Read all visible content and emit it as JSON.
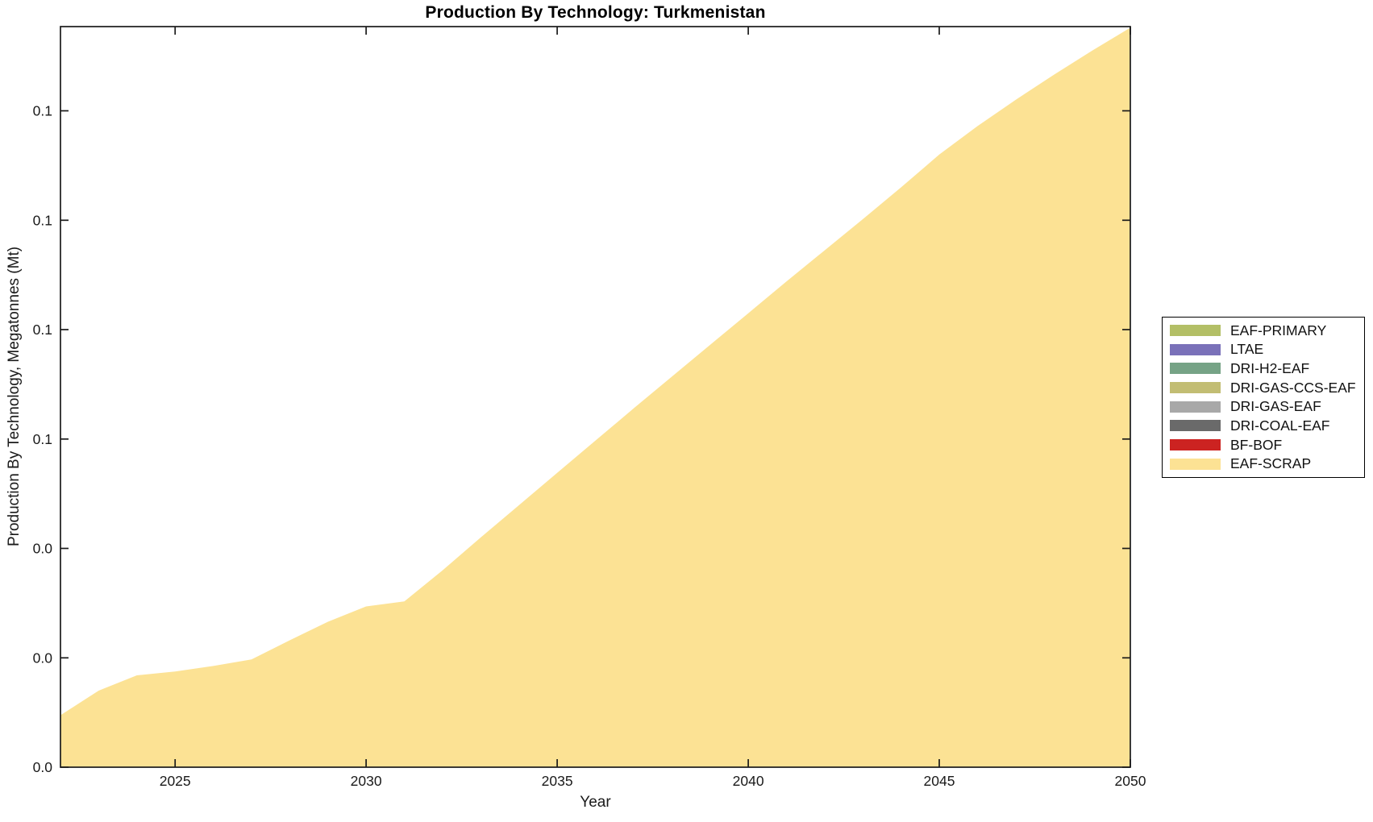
{
  "title": "Production By Technology: Turkmenistan",
  "axes": {
    "xlabel": "Year",
    "ylabel": "Production By Technology, Megatonnes (Mt)",
    "x_range": [
      2022,
      2050
    ],
    "y_range": [
      0,
      0.1354
    ],
    "x_ticks": [
      2025,
      2030,
      2035,
      2040,
      2045,
      2050
    ],
    "x_tick_labels": [
      "2025",
      "2030",
      "2035",
      "2040",
      "2045",
      "2050"
    ],
    "y_ticks": [
      0,
      0.02,
      0.04,
      0.06,
      0.08,
      0.1,
      0.12
    ],
    "y_tick_labels": [
      "0.0",
      "0.0",
      "0.0",
      "0.1",
      "0.1",
      "0.1",
      "0.1"
    ],
    "axis_color": "#1a1a1a",
    "grid": false
  },
  "chart_data": {
    "type": "area",
    "stacked": true,
    "title": "Production By Technology: Turkmenistan",
    "xlabel": "Year",
    "ylabel": "Production By Technology, Megatonnes (Mt)",
    "x_range": [
      2022,
      2050
    ],
    "y_range": [
      0,
      0.1354
    ],
    "legend_position": "outside-right",
    "grid": false,
    "x": [
      2022,
      2023,
      2024,
      2025,
      2026,
      2027,
      2028,
      2029,
      2030,
      2031,
      2032,
      2033,
      2034,
      2035,
      2036,
      2037,
      2038,
      2039,
      2040,
      2041,
      2042,
      2043,
      2044,
      2045,
      2046,
      2047,
      2048,
      2049,
      2050
    ],
    "series": [
      {
        "name": "EAF-PRIMARY",
        "color": "#b3bf66",
        "values": [
          0,
          0,
          0,
          0,
          0,
          0,
          0,
          0,
          0,
          0,
          0,
          0,
          0,
          0,
          0,
          0,
          0,
          0,
          0,
          0,
          0,
          0,
          0,
          0,
          0,
          0,
          0,
          0,
          0
        ]
      },
      {
        "name": "LTAE",
        "color": "#7a71b9",
        "values": [
          0,
          0,
          0,
          0,
          0,
          0,
          0,
          0,
          0,
          0,
          0,
          0,
          0,
          0,
          0,
          0,
          0,
          0,
          0,
          0,
          0,
          0,
          0,
          0,
          0,
          0,
          0,
          0,
          0
        ]
      },
      {
        "name": "DRI-H2-EAF",
        "color": "#76a386",
        "values": [
          0,
          0,
          0,
          0,
          0,
          0,
          0,
          0,
          0,
          0,
          0,
          0,
          0,
          0,
          0,
          0,
          0,
          0,
          0,
          0,
          0,
          0,
          0,
          0,
          0,
          0,
          0,
          0,
          0
        ]
      },
      {
        "name": "DRI-GAS-CCS-EAF",
        "color": "#c2bd73",
        "values": [
          0,
          0,
          0,
          0,
          0,
          0,
          0,
          0,
          0,
          0,
          0,
          0,
          0,
          0,
          0,
          0,
          0,
          0,
          0,
          0,
          0,
          0,
          0,
          0,
          0,
          0,
          0,
          0,
          0
        ]
      },
      {
        "name": "DRI-GAS-EAF",
        "color": "#a8a8a8",
        "values": [
          0,
          0,
          0,
          0,
          0,
          0,
          0,
          0,
          0,
          0,
          0,
          0,
          0,
          0,
          0,
          0,
          0,
          0,
          0,
          0,
          0,
          0,
          0,
          0,
          0,
          0,
          0,
          0,
          0
        ]
      },
      {
        "name": "DRI-COAL-EAF",
        "color": "#6a6a6a",
        "values": [
          0,
          0,
          0,
          0,
          0,
          0,
          0,
          0,
          0,
          0,
          0,
          0,
          0,
          0,
          0,
          0,
          0,
          0,
          0,
          0,
          0,
          0,
          0,
          0,
          0,
          0,
          0,
          0,
          0
        ]
      },
      {
        "name": "BF-BOF",
        "color": "#cc2321",
        "values": [
          0,
          0,
          0,
          0,
          0,
          0,
          0,
          0,
          0,
          0,
          0,
          0,
          0,
          0,
          0,
          0,
          0,
          0,
          0,
          0,
          0,
          0,
          0,
          0,
          0,
          0,
          0,
          0,
          0
        ]
      },
      {
        "name": "EAF-SCRAP",
        "color": "#fce294",
        "values": [
          0.0095,
          0.014,
          0.0168,
          0.0175,
          0.0185,
          0.0197,
          0.0232,
          0.0266,
          0.0294,
          0.0303,
          0.036,
          0.042,
          0.0479,
          0.0538,
          0.0597,
          0.0656,
          0.0714,
          0.0772,
          0.083,
          0.0888,
          0.0945,
          0.1002,
          0.106,
          0.112,
          0.1172,
          0.122,
          0.1266,
          0.131,
          0.1352
        ]
      }
    ]
  },
  "colors": {
    "background": "#ffffff",
    "axis": "#1a1a1a",
    "title_text": "#000000"
  }
}
